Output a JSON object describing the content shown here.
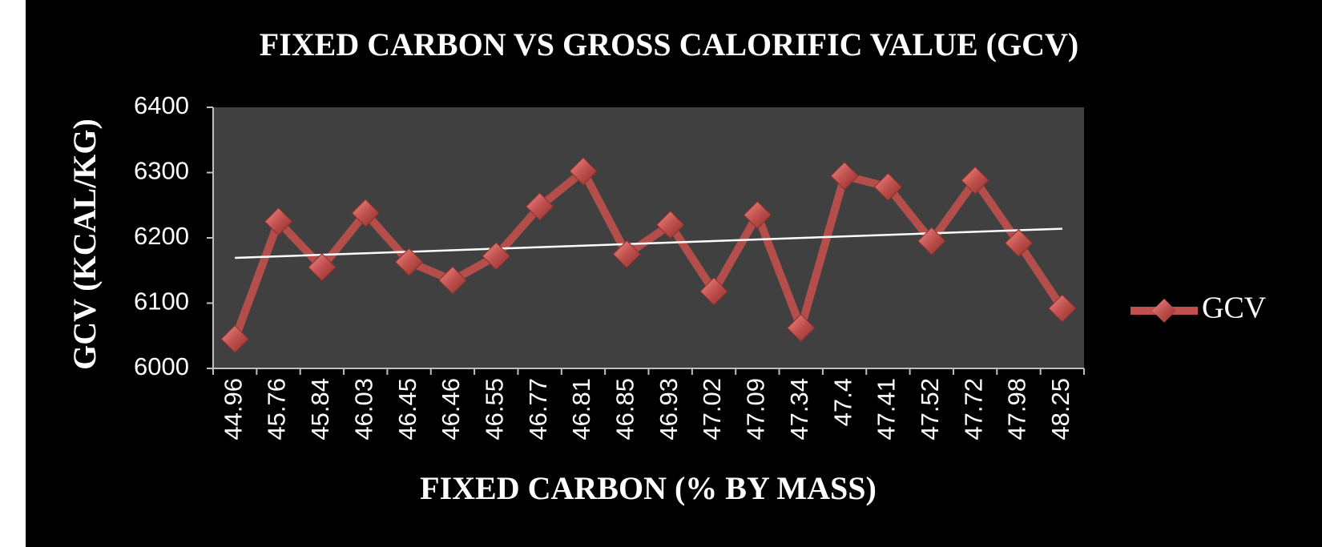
{
  "chart_data": {
    "type": "line",
    "title": "FIXED CARBON VS GROSS CALORIFIC VALUE (GCV)",
    "x_label": "FIXED CARBON (% BY MASS)",
    "y_label": "GCV (KCAL/KG)",
    "categories": [
      "44.96",
      "45.76",
      "45.84",
      "46.03",
      "46.45",
      "46.46",
      "46.55",
      "46.77",
      "46.81",
      "46.85",
      "46.93",
      "47.02",
      "47.09",
      "47.34",
      "47.4",
      "47.41",
      "47.52",
      "47.72",
      "47.98",
      "48.25"
    ],
    "series": [
      {
        "name": "GCV",
        "color": "#c0504d",
        "values": [
          6045,
          6225,
          6155,
          6238,
          6163,
          6135,
          6172,
          6248,
          6302,
          6175,
          6220,
          6118,
          6235,
          6062,
          6295,
          6278,
          6195,
          6288,
          6192,
          6092
        ]
      }
    ],
    "ylim": [
      6000,
      6400
    ],
    "yticks": [
      6000,
      6100,
      6200,
      6300,
      6400
    ],
    "trendline": true,
    "legend": "right"
  }
}
